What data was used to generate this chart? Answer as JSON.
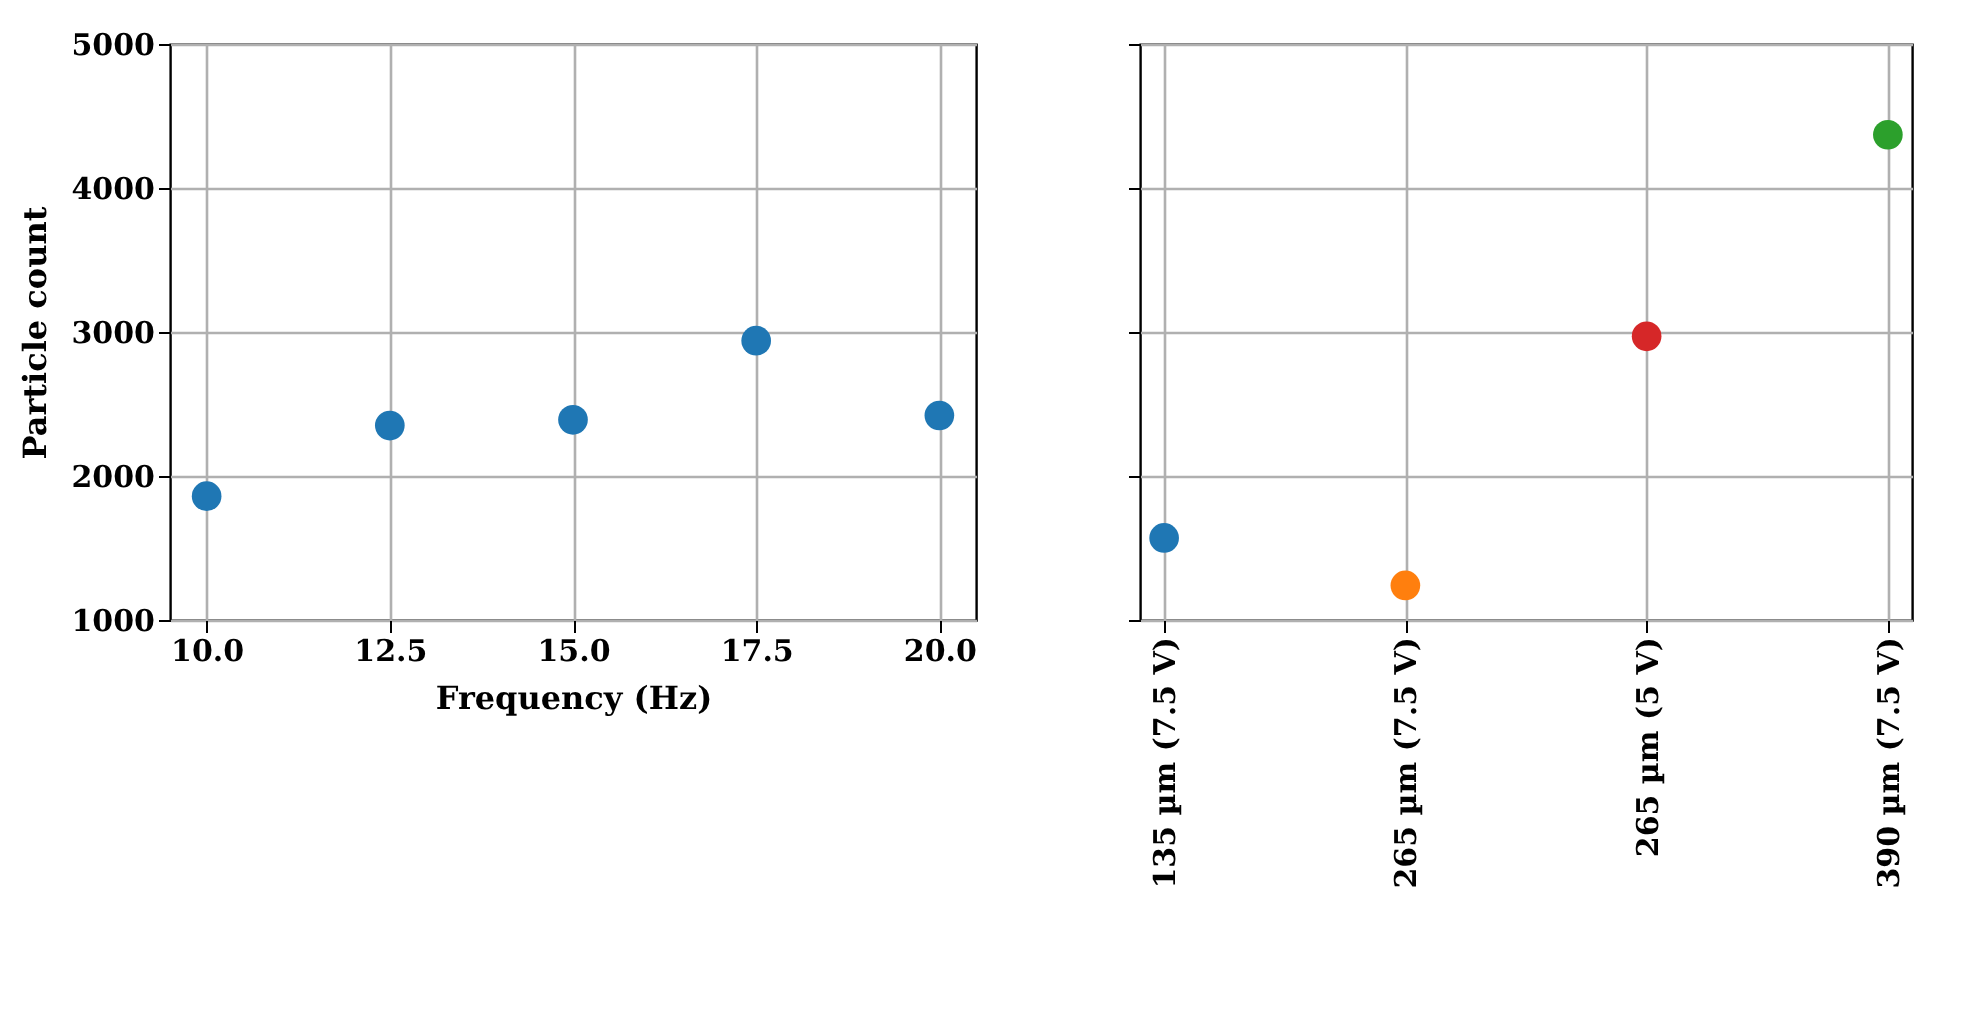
{
  "chart_data": [
    {
      "type": "scatter",
      "xlabel": "Frequency (Hz)",
      "ylabel": "Particle count",
      "x": [
        10,
        12.5,
        15,
        17.5,
        20
      ],
      "values": [
        1860,
        2350,
        2390,
        2940,
        2420
      ],
      "color": "#1f77b4",
      "xlim": [
        9.5,
        20.5
      ],
      "xticks": [
        {
          "value": 10,
          "label": "10.0"
        },
        12.5,
        {
          "value": 15,
          "label": "15.0"
        },
        17.5,
        {
          "value": 20,
          "label": "20.0"
        }
      ],
      "ylim": [
        1000,
        5000
      ],
      "yticks": [
        1000,
        2000,
        3000,
        4000,
        5000
      ],
      "grid": true,
      "marker": "circle"
    },
    {
      "type": "scatter",
      "categories": [
        "135 µm (7.5 V)",
        "265 µm (7.5 V)",
        "265 µm (5 V)",
        "390 µm (7.5 V)"
      ],
      "values": [
        1570,
        1240,
        2970,
        4370
      ],
      "colors": [
        "#1f77b4",
        "#ff7f0e",
        "#d62728",
        "#2ca02c"
      ],
      "ylim": [
        1000,
        5000
      ],
      "yticks": [
        1000,
        2000,
        3000,
        4000,
        5000
      ],
      "grid": true,
      "marker": "circle",
      "tick_labels": "x"
    }
  ]
}
